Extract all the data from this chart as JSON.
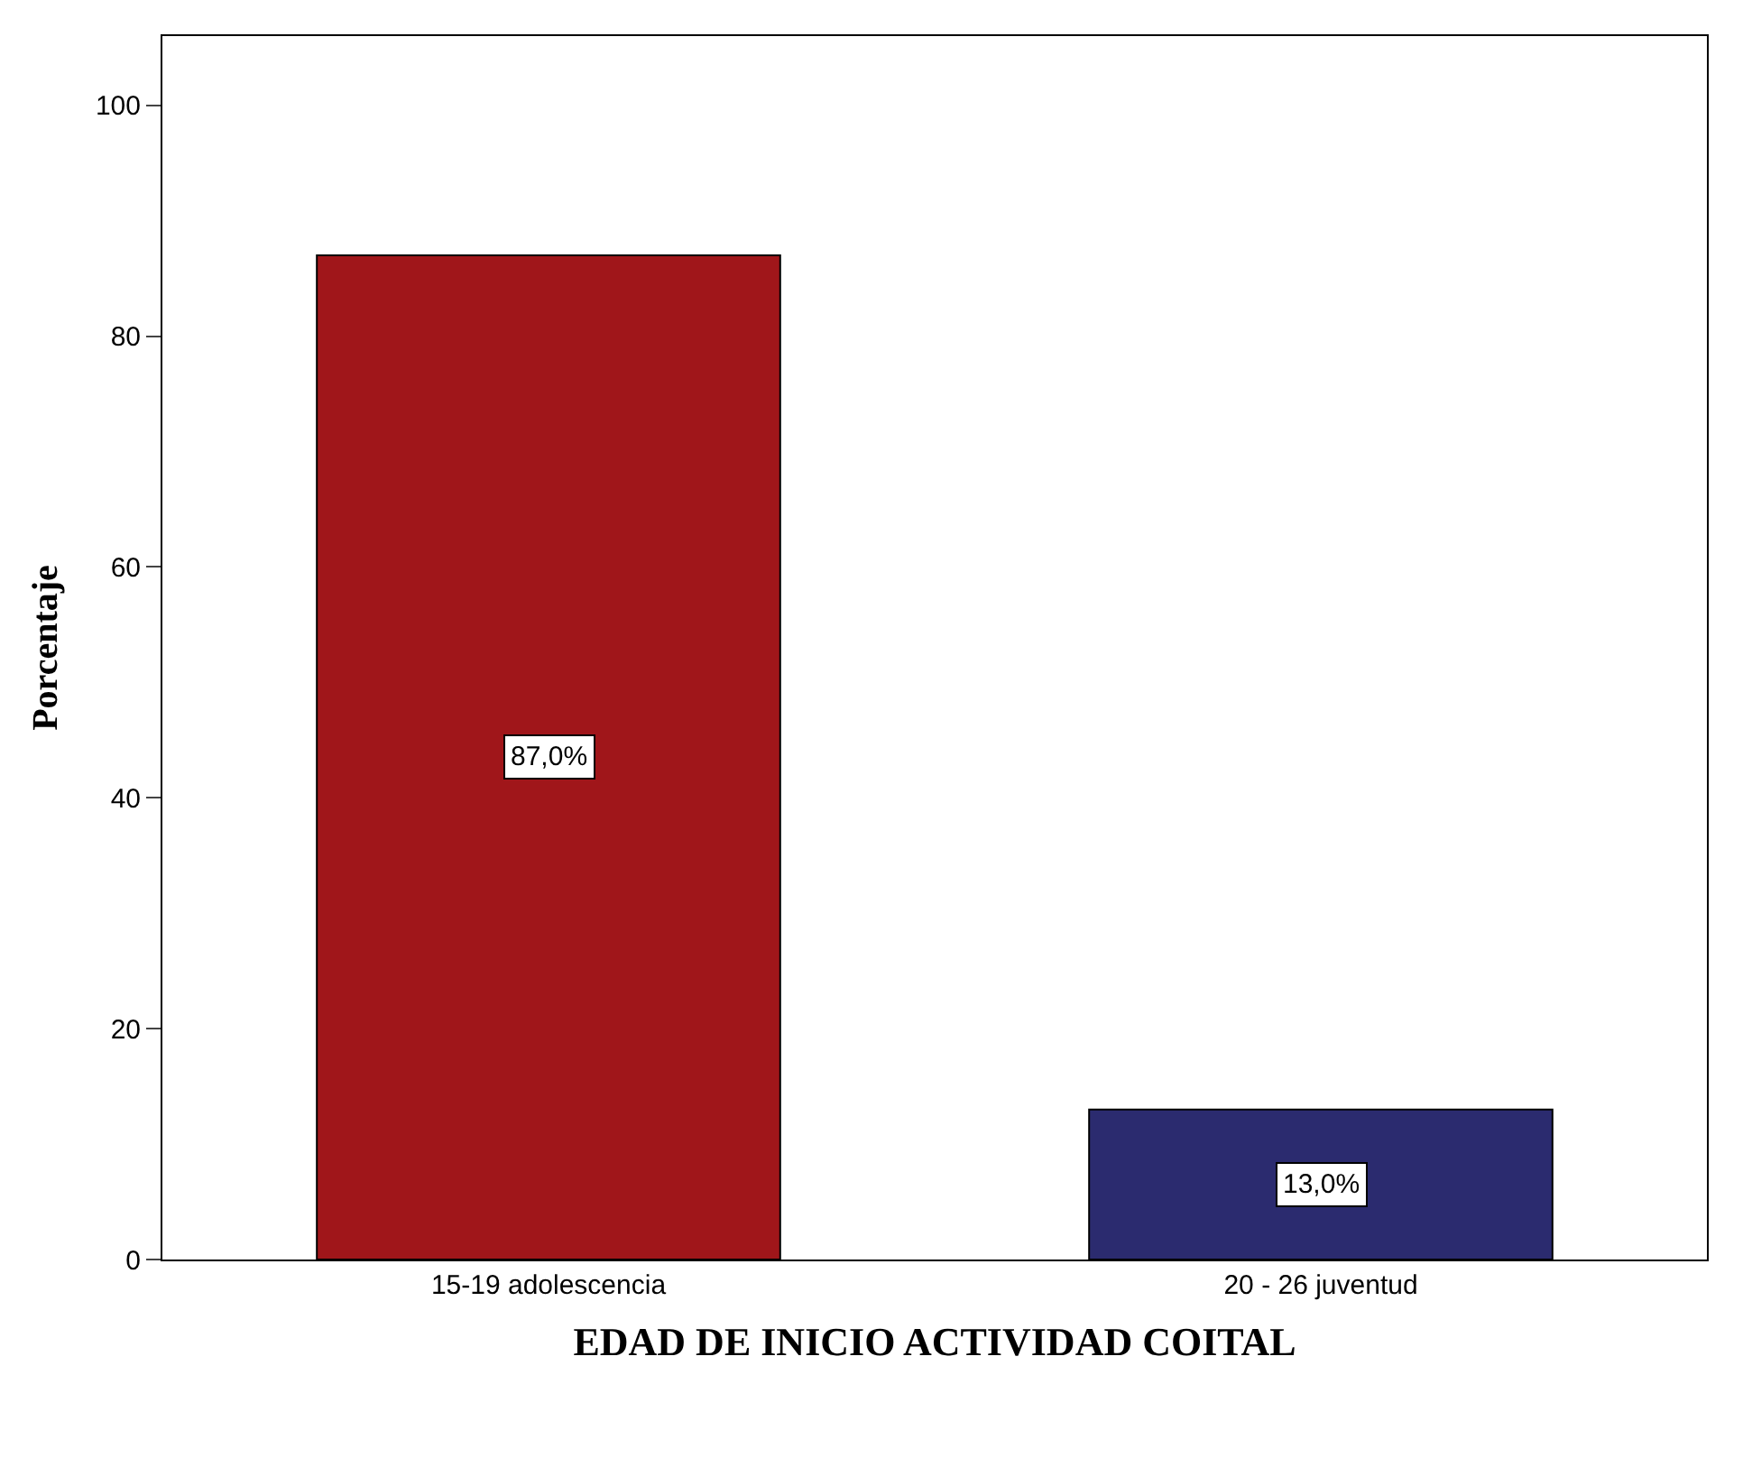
{
  "chart_data": {
    "type": "bar",
    "xlabel": "EDAD DE INICIO ACTIVIDAD COITAL",
    "ylabel": "Porcentaje",
    "categories": [
      "15-19 adolescencia",
      "20 - 26 juventud"
    ],
    "values": [
      87.0,
      13.0
    ],
    "colors": [
      "#a0161a",
      "#2b2b6f"
    ],
    "value_labels": [
      "87,0%",
      "13,0%"
    ],
    "ylim": [
      0,
      106
    ],
    "yticks": [
      0,
      20,
      40,
      60,
      80,
      100
    ]
  }
}
